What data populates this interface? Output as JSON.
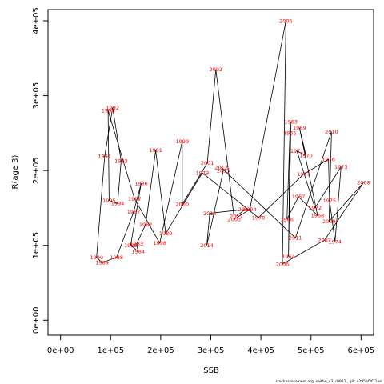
{
  "chart_data": {
    "type": "line",
    "xlabel": "SSB",
    "ylabel": "R(age 3)",
    "xlim": [
      -25000,
      625000
    ],
    "ylim": [
      -20000,
      415000
    ],
    "x_ticks": [
      {
        "value": 0,
        "label": "0e+00"
      },
      {
        "value": 100000,
        "label": "1e+05"
      },
      {
        "value": 200000,
        "label": "2e+05"
      },
      {
        "value": 300000,
        "label": "3e+05"
      },
      {
        "value": 400000,
        "label": "4e+05"
      },
      {
        "value": 500000,
        "label": "5e+05"
      },
      {
        "value": 600000,
        "label": "6e+05"
      }
    ],
    "y_ticks": [
      {
        "value": 0,
        "label": "0e+00"
      },
      {
        "value": 100000,
        "label": "1e+05"
      },
      {
        "value": 200000,
        "label": "2e+05"
      },
      {
        "value": 300000,
        "label": "3e+05"
      },
      {
        "value": 400000,
        "label": "4e+05"
      }
    ],
    "grid": false,
    "line_color": "#000000",
    "label_color": "#ff0000",
    "points": [
      {
        "year": "1963",
        "x": 460000,
        "y": 265000
      },
      {
        "year": "1964",
        "x": 455000,
        "y": 85000
      },
      {
        "year": "1965",
        "x": 458000,
        "y": 250000
      },
      {
        "year": "1966",
        "x": 452000,
        "y": 135000
      },
      {
        "year": "1967",
        "x": 475000,
        "y": 165000
      },
      {
        "year": "1968",
        "x": 513000,
        "y": 140000
      },
      {
        "year": "1969",
        "x": 477000,
        "y": 257000
      },
      {
        "year": "1970",
        "x": 490000,
        "y": 220000
      },
      {
        "year": "1971",
        "x": 472000,
        "y": 226000
      },
      {
        "year": "1972",
        "x": 508000,
        "y": 150000
      },
      {
        "year": "1973",
        "x": 560000,
        "y": 205000
      },
      {
        "year": "1974",
        "x": 548000,
        "y": 105000
      },
      {
        "year": "1975",
        "x": 537000,
        "y": 160000
      },
      {
        "year": "1976",
        "x": 535000,
        "y": 215000
      },
      {
        "year": "1977",
        "x": 485000,
        "y": 195000
      },
      {
        "year": "1978",
        "x": 395000,
        "y": 137000
      },
      {
        "year": "1979",
        "x": 283000,
        "y": 197000
      },
      {
        "year": "1980",
        "x": 210000,
        "y": 116000
      },
      {
        "year": "1981",
        "x": 190000,
        "y": 227000
      },
      {
        "year": "1982",
        "x": 170000,
        "y": 128000
      },
      {
        "year": "1983",
        "x": 152000,
        "y": 102000
      },
      {
        "year": "1984",
        "x": 155000,
        "y": 92000
      },
      {
        "year": "1985",
        "x": 140000,
        "y": 100000
      },
      {
        "year": "1986",
        "x": 161000,
        "y": 183000
      },
      {
        "year": "1987",
        "x": 146000,
        "y": 145000
      },
      {
        "year": "1988",
        "x": 112000,
        "y": 84000
      },
      {
        "year": "1989",
        "x": 83000,
        "y": 77000
      },
      {
        "year": "1990",
        "x": 72000,
        "y": 84000
      },
      {
        "year": "1991",
        "x": 88000,
        "y": 219000
      },
      {
        "year": "1992",
        "x": 104000,
        "y": 284000
      },
      {
        "year": "1993",
        "x": 121000,
        "y": 213000
      },
      {
        "year": "1994",
        "x": 114000,
        "y": 156000
      },
      {
        "year": "1995",
        "x": 97000,
        "y": 160000
      },
      {
        "year": "1996",
        "x": 95000,
        "y": 280000
      },
      {
        "year": "1997",
        "x": 148000,
        "y": 162000
      },
      {
        "year": "1998",
        "x": 198000,
        "y": 103000
      },
      {
        "year": "1999",
        "x": 243000,
        "y": 239000
      },
      {
        "year": "2000",
        "x": 243000,
        "y": 155000
      },
      {
        "year": "2001",
        "x": 293000,
        "y": 210000
      },
      {
        "year": "2002",
        "x": 310000,
        "y": 335000
      },
      {
        "year": "2003",
        "x": 347000,
        "y": 135000
      },
      {
        "year": "2004",
        "x": 378000,
        "y": 148000
      },
      {
        "year": "2005",
        "x": 450000,
        "y": 400000
      },
      {
        "year": "2006",
        "x": 443000,
        "y": 75000
      },
      {
        "year": "2007",
        "x": 527000,
        "y": 107000
      },
      {
        "year": "2008",
        "x": 605000,
        "y": 184000
      },
      {
        "year": "2009",
        "x": 536000,
        "y": 132000
      },
      {
        "year": "2010",
        "x": 541000,
        "y": 252000
      },
      {
        "year": "2011",
        "x": 469000,
        "y": 110000
      },
      {
        "year": "2012",
        "x": 321000,
        "y": 204000
      },
      {
        "year": "2013",
        "x": 325000,
        "y": 200000
      },
      {
        "year": "2014",
        "x": 292000,
        "y": 100000
      },
      {
        "year": "2015",
        "x": 298000,
        "y": 143000
      },
      {
        "year": "2016",
        "x": 368000,
        "y": 148000
      },
      {
        "year": "2017",
        "x": 351000,
        "y": 139000
      }
    ]
  },
  "footer_text": "stockassessment.org, saithe_v3, r9911 , git: a295ef2f11ae"
}
